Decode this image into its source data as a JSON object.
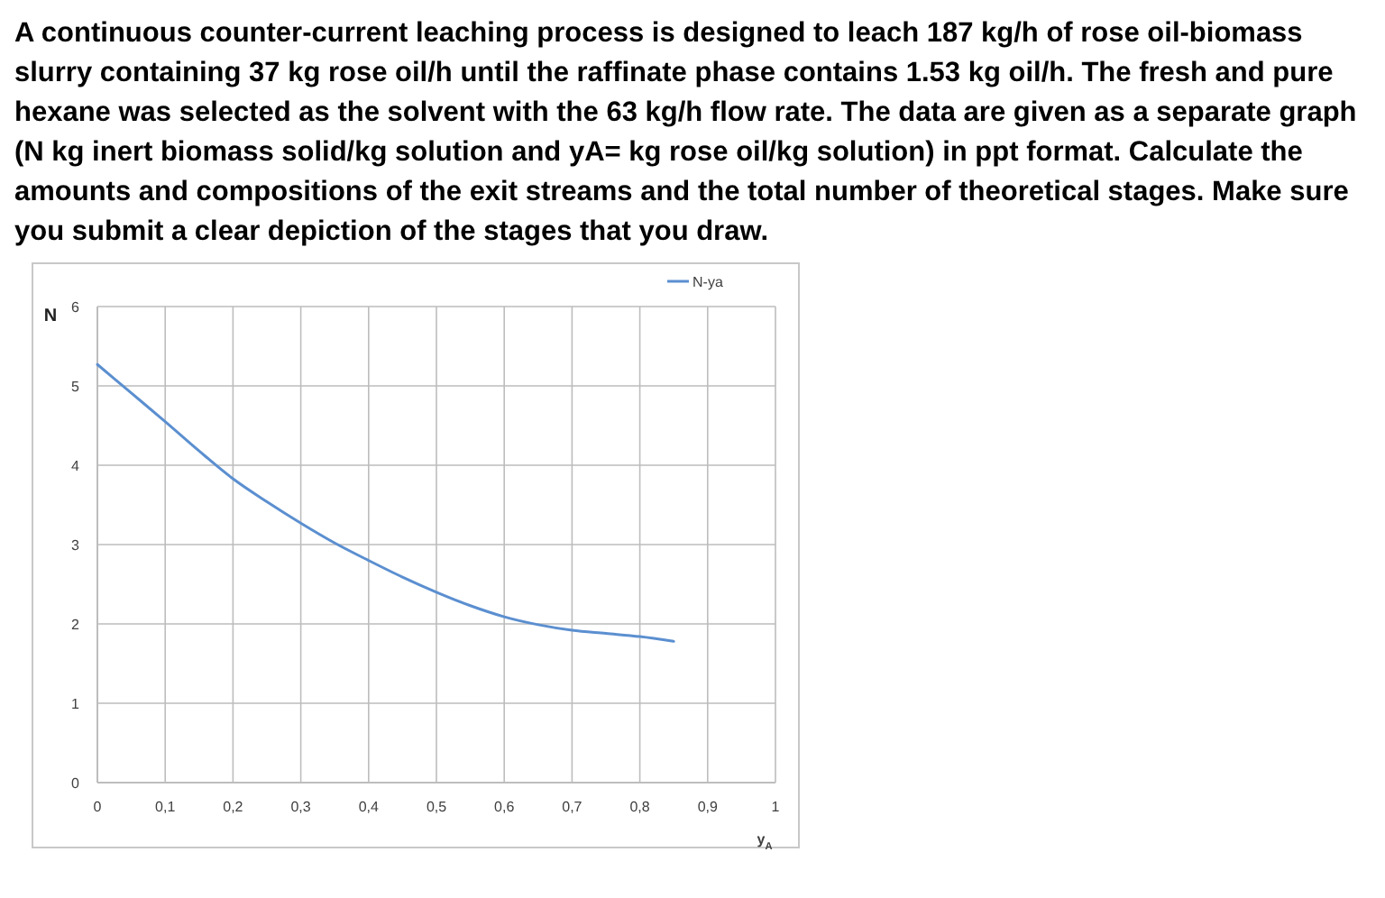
{
  "chart_data": {
    "type": "line",
    "title": "A continuous counter-current leaching process is designed to leach 187 kg/h of rose oil-biomass slurry containing 37 kg rose oil/h until the raffinate phase contains 1.53 kg oil/h. The fresh and pure hexane was selected as the solvent with the 63 kg/h flow rate. The data are given as a separate graph (N kg inert biomass solid/kg solution and yA= kg rose oil/kg solution) in ppt format. Calculate the amounts and compositions of the exit streams and the total number of theoretical stages. Make sure you submit a clear depiction of the stages that you draw.",
    "xlabel": "y$_{A}$",
    "ylabel": "N",
    "x": [
      0,
      0.05,
      0.1,
      0.15,
      0.2,
      0.25,
      0.3,
      0.35,
      0.4,
      0.45,
      0.5,
      0.55,
      0.6,
      0.65,
      0.7,
      0.75,
      0.8,
      0.85
    ],
    "series": [
      {
        "name": "N-ya",
        "color": "#5b8fd0",
        "values": [
          5.27,
          4.91,
          4.55,
          4.18,
          3.83,
          3.54,
          3.27,
          3.02,
          2.8,
          2.59,
          2.4,
          2.23,
          2.09,
          1.99,
          1.92,
          1.88,
          1.84,
          1.78
        ]
      }
    ],
    "xlim": [
      0,
      1
    ],
    "xticks": [
      0,
      {
        "value": 0.1,
        "label": "0,1"
      },
      {
        "value": 0.2,
        "label": "0,2"
      },
      {
        "value": 0.3,
        "label": "0,3"
      },
      {
        "value": 0.4,
        "label": "0,4"
      },
      {
        "value": 0.5,
        "label": "0,5"
      },
      {
        "value": 0.6,
        "label": "0,6"
      },
      {
        "value": 0.7,
        "label": "0,7"
      },
      {
        "value": 0.8,
        "label": "0,8"
      },
      {
        "value": 0.9,
        "label": "0,9"
      },
      1
    ],
    "ylim": [
      0,
      6
    ],
    "yticks": [
      0,
      1,
      2,
      3,
      4,
      5,
      6
    ],
    "grid": true,
    "legend": "top right",
    "marker": "none",
    "line_style": "solid"
  }
}
